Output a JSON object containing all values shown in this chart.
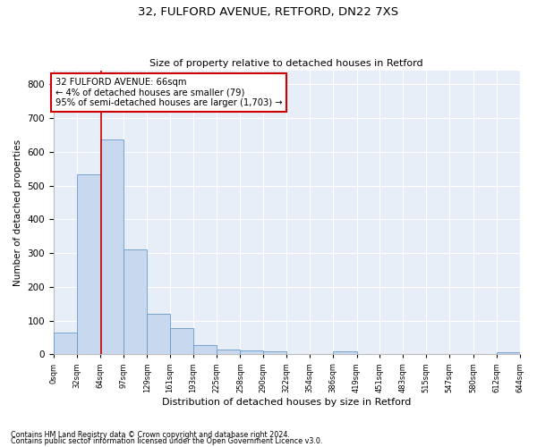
{
  "title1": "32, FULFORD AVENUE, RETFORD, DN22 7XS",
  "title2": "Size of property relative to detached houses in Retford",
  "xlabel": "Distribution of detached houses by size in Retford",
  "ylabel": "Number of detached properties",
  "footer1": "Contains HM Land Registry data © Crown copyright and database right 2024.",
  "footer2": "Contains public sector information licensed under the Open Government Licence v3.0.",
  "annotation_line1": "32 FULFORD AVENUE: 66sqm",
  "annotation_line2": "← 4% of detached houses are smaller (79)",
  "annotation_line3": "95% of semi-detached houses are larger (1,703) →",
  "property_sqm": 66,
  "bar_edges": [
    0,
    32,
    64,
    97,
    129,
    161,
    193,
    225,
    258,
    290,
    322,
    354,
    386,
    419,
    451,
    483,
    515,
    547,
    580,
    612,
    644
  ],
  "bar_values": [
    65,
    534,
    636,
    312,
    120,
    78,
    28,
    15,
    11,
    10,
    0,
    0,
    9,
    0,
    0,
    0,
    0,
    0,
    0,
    6
  ],
  "bar_color": "#c8d8ee",
  "bar_edgecolor": "#6699cc",
  "marker_line_color": "#cc0000",
  "background_color": "#e8eef8",
  "grid_color": "#ffffff",
  "ylim": [
    0,
    840
  ],
  "yticks": [
    0,
    100,
    200,
    300,
    400,
    500,
    600,
    700,
    800
  ],
  "annotation_box_edgecolor": "#cc0000",
  "annotation_box_facecolor": "#ffffff",
  "title1_fontsize": 9.5,
  "title2_fontsize": 8.5
}
